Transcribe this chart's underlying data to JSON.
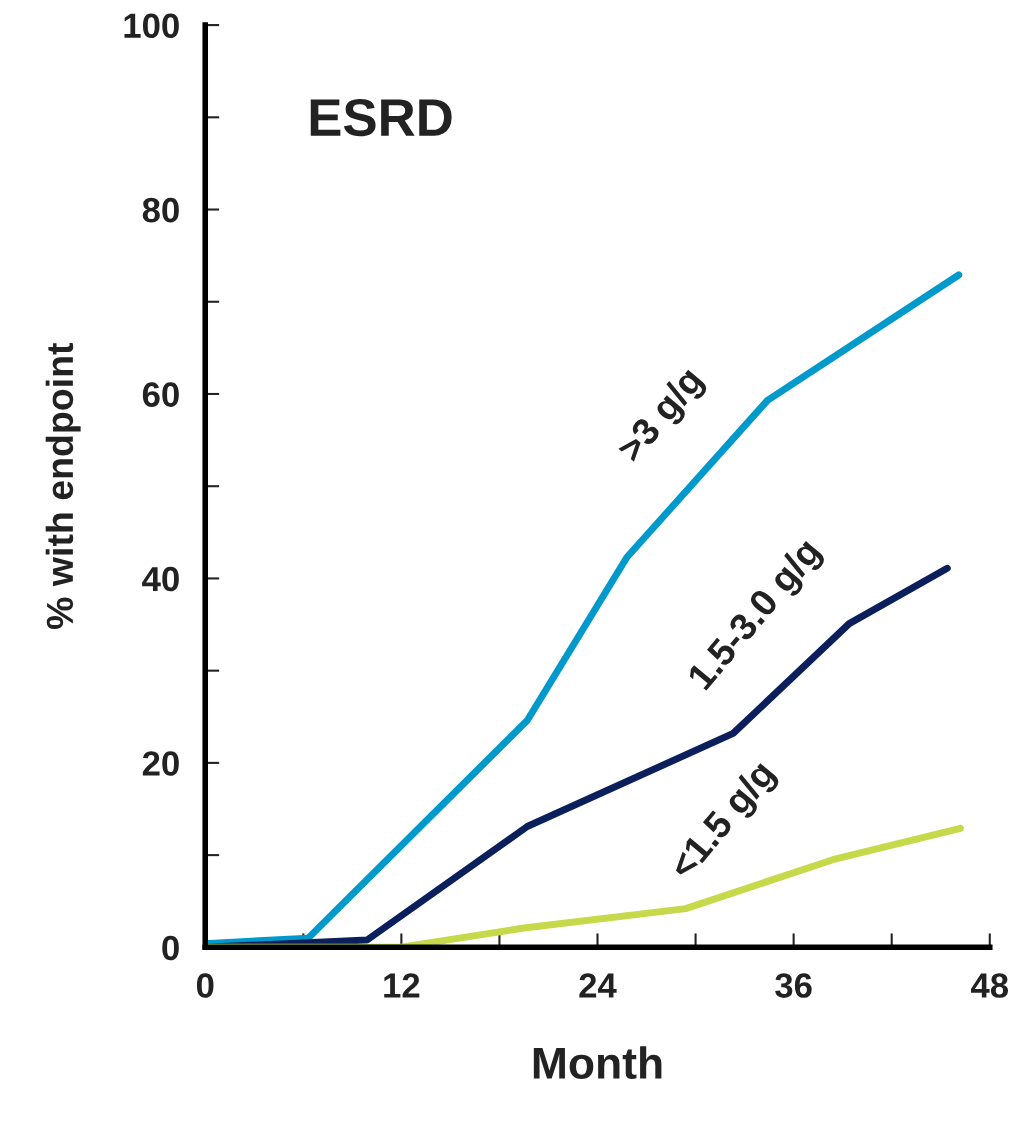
{
  "chart_data": {
    "type": "line",
    "title": "ESRD",
    "xlabel": "Month",
    "ylabel": "% with endpoint",
    "xlim": [
      0,
      48
    ],
    "ylim": [
      0,
      100
    ],
    "xticks": [
      0,
      {
        "value": 6,
        "label": null
      },
      12,
      {
        "value": 18,
        "label": null
      },
      24,
      {
        "value": 30,
        "label": null
      },
      36,
      {
        "value": 42,
        "label": null
      },
      48
    ],
    "yticks": [
      0,
      {
        "value": 10,
        "label": null
      },
      20,
      {
        "value": 30,
        "label": null
      },
      40,
      {
        "value": 50,
        "label": null
      },
      60,
      {
        "value": 70,
        "label": null
      },
      80,
      {
        "value": 90,
        "label": null
      },
      100
    ],
    "grid": false,
    "legend": false,
    "marker": "none",
    "line_style": "solid",
    "series": [
      {
        "name": ">3 g/g",
        "color": "#0099cc",
        "x": [
          0,
          6.3,
          19.7,
          25.8,
          34.4,
          46.1
        ],
        "values": [
          0.4,
          1.0,
          24.6,
          42.3,
          59.3,
          72.9
        ]
      },
      {
        "name": "1.5-3.0 g/g",
        "color": "#0a1f5c",
        "x": [
          0,
          9.9,
          19.7,
          32.3,
          39.4,
          45.4
        ],
        "values": [
          0,
          0.8,
          13.1,
          23.2,
          35.1,
          41.1
        ]
      },
      {
        "name": "<1.5 g/g",
        "color": "#c5d94a",
        "x": [
          0,
          11.9,
          19.5,
          29.4,
          38.4,
          46.2
        ],
        "values": [
          0,
          0,
          2.1,
          4.2,
          9.5,
          12.9
        ]
      }
    ]
  }
}
